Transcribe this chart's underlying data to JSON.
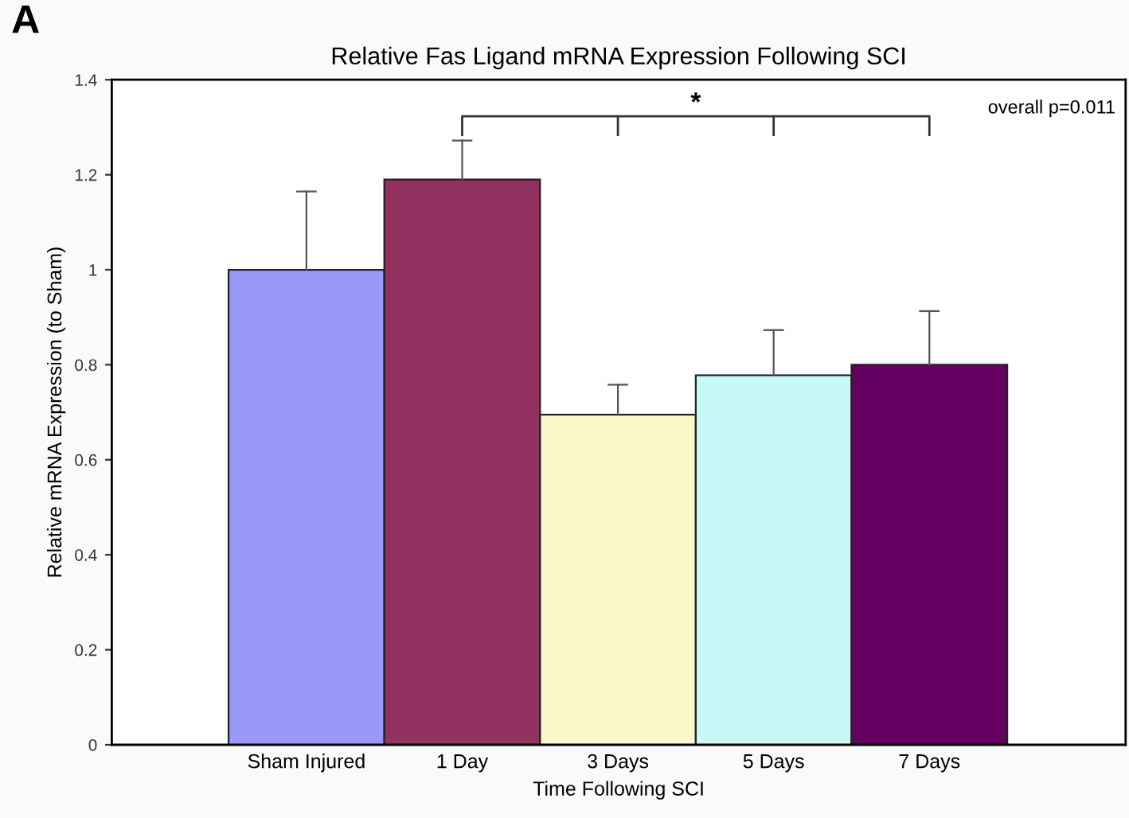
{
  "chart_data": {
    "type": "bar",
    "title": "Relative Fas Ligand mRNA Expression Following SCI",
    "xlabel": "Time Following SCI",
    "ylabel": "Relative mRNA Expression (to Sham)",
    "categories": [
      "Sham Injured",
      "1 Day",
      "3 Days",
      "5 Days",
      "7 Days"
    ],
    "values": [
      1.0,
      1.19,
      0.695,
      0.778,
      0.8
    ],
    "colors": [
      "#9999fa",
      "#923260",
      "#f8f8c8",
      "#c8f8f8",
      "#640060"
    ],
    "errors": [
      [
        1.0,
        1.165
      ],
      [
        1.19,
        1.272
      ],
      [
        0.695,
        0.758
      ],
      [
        0.778,
        0.873
      ],
      [
        0.8,
        0.913
      ]
    ],
    "ylim": [
      0,
      1.4
    ],
    "yticks": [
      0,
      0.2,
      0.4,
      0.6,
      0.8,
      1,
      1.2,
      1.4
    ],
    "grid": false,
    "annotations": [
      "A",
      "*",
      "overall p=0.011"
    ]
  }
}
